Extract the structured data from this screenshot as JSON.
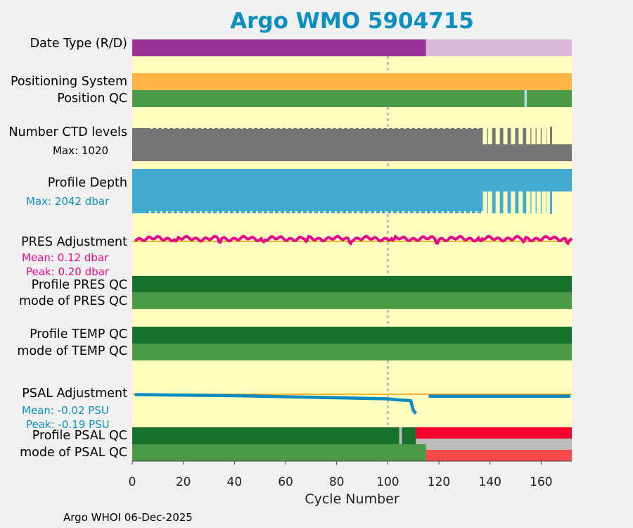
{
  "title": "Argo WMO 5904715",
  "footer": "Argo WHOI 06-Dec-2025",
  "rows": {
    "date_type": "Date Type (R/D)",
    "positioning": "Positioning System",
    "position_qc": "Position QC",
    "ctd_levels": "Number CTD levels",
    "ctd_max": "Max: 1020",
    "profile_depth": "Profile Depth",
    "depth_max": "Max: 2042 dbar",
    "pres_adj": "PRES Adjustment",
    "pres_mean": "Mean: 0.12 dbar",
    "pres_peak": "Peak: 0.20 dbar",
    "profile_pres_qc": "Profile PRES QC",
    "mode_pres_qc": "mode of PRES QC",
    "profile_temp_qc": "Profile TEMP QC",
    "mode_temp_qc": "mode of TEMP QC",
    "psal_adj": "PSAL Adjustment",
    "psal_mean": "Mean: -0.02 PSU",
    "psal_peak": "Peak: -0.19 PSU",
    "profile_psal_qc": "Profile PSAL QC",
    "mode_psal_qc": "mode of PSAL QC"
  },
  "colors": {
    "background": "#ffffc0",
    "realtime": "#993399",
    "delayed": "#dbb8db",
    "gps": "#ffb443",
    "qc_good": "#4a9a46",
    "qc_profile_good": "#16722a",
    "qc_gap": "#b6d8e6",
    "ctd": "#757575",
    "depth": "#43a9cf",
    "pres_line": "#e6088a",
    "psal_line": "#0c89be",
    "psal_bad": "#f5002c",
    "psal_grey": "#bcbcbc",
    "psal_red": "#f84848",
    "divider": "#f0a000",
    "ref_line": "#c0c0c0",
    "sub_black": "#000000"
  },
  "chart_data": {
    "type": "timeline",
    "xlabel": "Cycle Number",
    "xlim": [
      0,
      172
    ],
    "xticks": [
      0,
      20,
      40,
      60,
      80,
      100,
      120,
      140,
      160
    ],
    "reference_cycle": 100,
    "date_type": [
      {
        "label": "R",
        "from": 0,
        "to": 115
      },
      {
        "label": "D",
        "from": 115,
        "to": 172
      }
    ],
    "position_qc_gap_cycle": 154,
    "ctd_levels_max": 1020,
    "ctd_dropouts": [
      138,
      140,
      143,
      146,
      149,
      152,
      155,
      157,
      159,
      161
    ],
    "depth_max_dbar": 2042,
    "depth_dropouts": [
      138,
      140,
      143,
      146,
      149,
      152,
      155,
      157,
      159,
      161
    ],
    "pres_adjustment": {
      "mean": 0.12,
      "peak": 0.2,
      "unit": "dbar"
    },
    "psal_adjustment": {
      "unit": "PSU",
      "mean": -0.02,
      "peak": -0.19,
      "segment1": {
        "cycles": [
          1,
          20,
          40,
          60,
          80,
          100,
          104,
          108,
          109,
          110,
          111
        ],
        "values": [
          -0.01,
          -0.015,
          -0.02,
          -0.03,
          -0.04,
          -0.05,
          -0.06,
          -0.065,
          -0.07,
          -0.16,
          -0.19
        ]
      },
      "segment2": {
        "cycles": [
          116,
          172
        ],
        "values": [
          -0.025,
          -0.025
        ]
      }
    },
    "psal_qc": [
      {
        "profile": "good",
        "from": 0,
        "to": 111
      },
      {
        "profile": "bad",
        "from": 111,
        "to": 172
      }
    ],
    "psal_qc_gap_cycle": 105,
    "mode_psal_qc": [
      {
        "quality": "good",
        "from": 0,
        "to": 115
      },
      {
        "quality": "bad",
        "from": 115,
        "to": 172
      }
    ]
  }
}
